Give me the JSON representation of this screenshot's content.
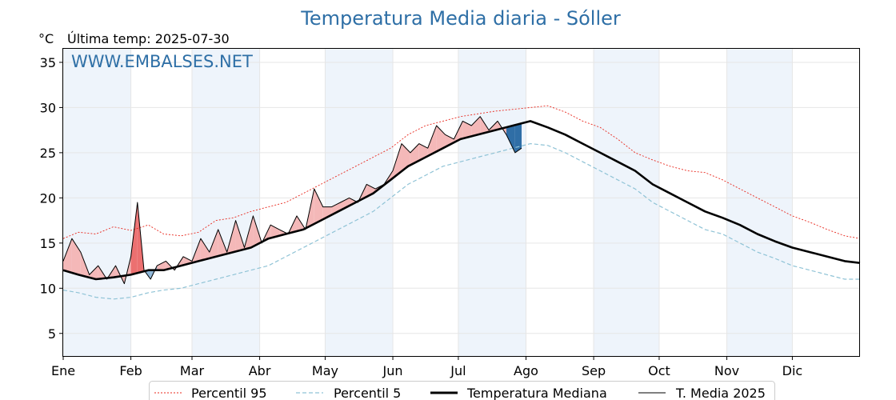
{
  "chart_data": {
    "type": "line",
    "title": "Temperatura Media diaria - Sóller",
    "unit_label": "°C",
    "last_temp_label": "Última temp: 2025-07-30",
    "watermark": "WWW.EMBALSES.NET",
    "ylim": [
      2.5,
      36.5
    ],
    "yticks": [
      5,
      10,
      15,
      20,
      25,
      30,
      35
    ],
    "months": [
      "Ene",
      "Feb",
      "Mar",
      "Abr",
      "May",
      "Jun",
      "Jul",
      "Ago",
      "Sep",
      "Oct",
      "Nov",
      "Dic"
    ],
    "grid": true,
    "legend_position": "bottom",
    "series": [
      {
        "name": "Percentil 95",
        "color": "#e8281e",
        "style": "dotted",
        "x": [
          1,
          8,
          16,
          24,
          32,
          40,
          47,
          55,
          63,
          71,
          79,
          87,
          95,
          103,
          111,
          119,
          127,
          135,
          143,
          151,
          159,
          167,
          175,
          183,
          191,
          199,
          207,
          215,
          223,
          231,
          239,
          247,
          255,
          263,
          271,
          279,
          287,
          295,
          303,
          311,
          319,
          327,
          335,
          343,
          351,
          359,
          366
        ],
        "y": [
          15.5,
          16.2,
          16.0,
          16.8,
          16.4,
          17.0,
          16.0,
          15.8,
          16.2,
          17.5,
          17.8,
          18.5,
          19.0,
          19.5,
          20.5,
          21.5,
          22.5,
          23.5,
          24.5,
          25.5,
          27.0,
          28.0,
          28.5,
          29.0,
          29.3,
          29.6,
          29.8,
          30.0,
          30.2,
          29.5,
          28.5,
          27.8,
          26.5,
          25.0,
          24.2,
          23.5,
          23.0,
          22.8,
          22.0,
          21.0,
          20.0,
          19.0,
          18.0,
          17.3,
          16.5,
          15.8,
          15.5
        ]
      },
      {
        "name": "Percentil 5",
        "color": "#8fc3d6",
        "style": "dashed",
        "x": [
          1,
          8,
          16,
          24,
          32,
          40,
          47,
          55,
          63,
          71,
          79,
          87,
          95,
          103,
          111,
          119,
          127,
          135,
          143,
          151,
          159,
          167,
          175,
          183,
          191,
          199,
          207,
          215,
          223,
          231,
          239,
          247,
          255,
          263,
          271,
          279,
          287,
          295,
          303,
          311,
          319,
          327,
          335,
          343,
          351,
          359,
          366
        ],
        "y": [
          9.8,
          9.5,
          9.0,
          8.8,
          9.0,
          9.5,
          9.8,
          10.0,
          10.5,
          11.0,
          11.5,
          12.0,
          12.5,
          13.5,
          14.5,
          15.5,
          16.5,
          17.5,
          18.5,
          20.0,
          21.5,
          22.5,
          23.5,
          24.0,
          24.5,
          25.0,
          25.5,
          26.0,
          25.8,
          25.0,
          24.0,
          23.0,
          22.0,
          21.0,
          19.5,
          18.5,
          17.5,
          16.5,
          16.0,
          15.0,
          14.0,
          13.3,
          12.5,
          12.0,
          11.5,
          11.0,
          11.0
        ]
      },
      {
        "name": "Temperatura Mediana",
        "color": "#000000",
        "style": "thick",
        "x": [
          1,
          8,
          16,
          24,
          32,
          40,
          47,
          55,
          63,
          71,
          79,
          87,
          95,
          103,
          111,
          119,
          127,
          135,
          143,
          151,
          159,
          167,
          175,
          183,
          191,
          199,
          207,
          215,
          223,
          231,
          239,
          247,
          255,
          263,
          271,
          279,
          287,
          295,
          303,
          311,
          319,
          327,
          335,
          343,
          351,
          359,
          366
        ],
        "y": [
          12.0,
          11.5,
          11.0,
          11.2,
          11.5,
          12.0,
          12.0,
          12.5,
          13.0,
          13.5,
          14.0,
          14.5,
          15.5,
          16.0,
          16.5,
          17.5,
          18.5,
          19.5,
          20.5,
          22.0,
          23.5,
          24.5,
          25.5,
          26.5,
          27.0,
          27.5,
          28.0,
          28.5,
          27.8,
          27.0,
          26.0,
          25.0,
          24.0,
          23.0,
          21.5,
          20.5,
          19.5,
          18.5,
          17.8,
          17.0,
          16.0,
          15.2,
          14.5,
          14.0,
          13.5,
          13.0,
          12.8
        ]
      },
      {
        "name": "T. Media 2025",
        "color": "#000000",
        "style": "thin",
        "x": [
          1,
          5,
          9,
          13,
          17,
          21,
          25,
          29,
          32,
          35,
          38,
          41,
          44,
          48,
          52,
          56,
          60,
          64,
          68,
          72,
          76,
          80,
          84,
          88,
          92,
          96,
          100,
          104,
          108,
          112,
          116,
          120,
          124,
          128,
          132,
          136,
          140,
          144,
          148,
          152,
          156,
          160,
          164,
          168,
          172,
          176,
          180,
          184,
          188,
          192,
          196,
          200,
          204,
          208,
          211
        ],
        "y": [
          13.0,
          15.5,
          14.0,
          11.5,
          12.5,
          11.0,
          12.5,
          10.5,
          13.5,
          19.5,
          12.0,
          11.0,
          12.5,
          13.0,
          12.0,
          13.5,
          13.0,
          15.5,
          14.0,
          16.5,
          14.0,
          17.5,
          14.5,
          18.0,
          15.0,
          17.0,
          16.5,
          16.0,
          18.0,
          16.5,
          21.0,
          19.0,
          19.0,
          19.5,
          20.0,
          19.5,
          21.5,
          21.0,
          21.5,
          23.0,
          26.0,
          25.0,
          26.0,
          25.5,
          28.0,
          27.0,
          26.5,
          28.5,
          28.0,
          29.0,
          27.5,
          28.5,
          27.0,
          25.0,
          25.5
        ]
      }
    ]
  },
  "legend": {
    "p95_label": "Percentil 95",
    "p5_label": "Percentil 5",
    "median_label": "Temperatura Mediana",
    "y2025_label": "T. Media 2025"
  },
  "colors": {
    "title": "#2e6fa6",
    "watermark": "#2e6fa6",
    "above_fill_light": "#f4b8b8",
    "above_fill_dark": "#ec7070",
    "below_fill_light": "#8db6d8",
    "below_fill_dark": "#2f6ea6",
    "month_band": "#eef4fb"
  }
}
